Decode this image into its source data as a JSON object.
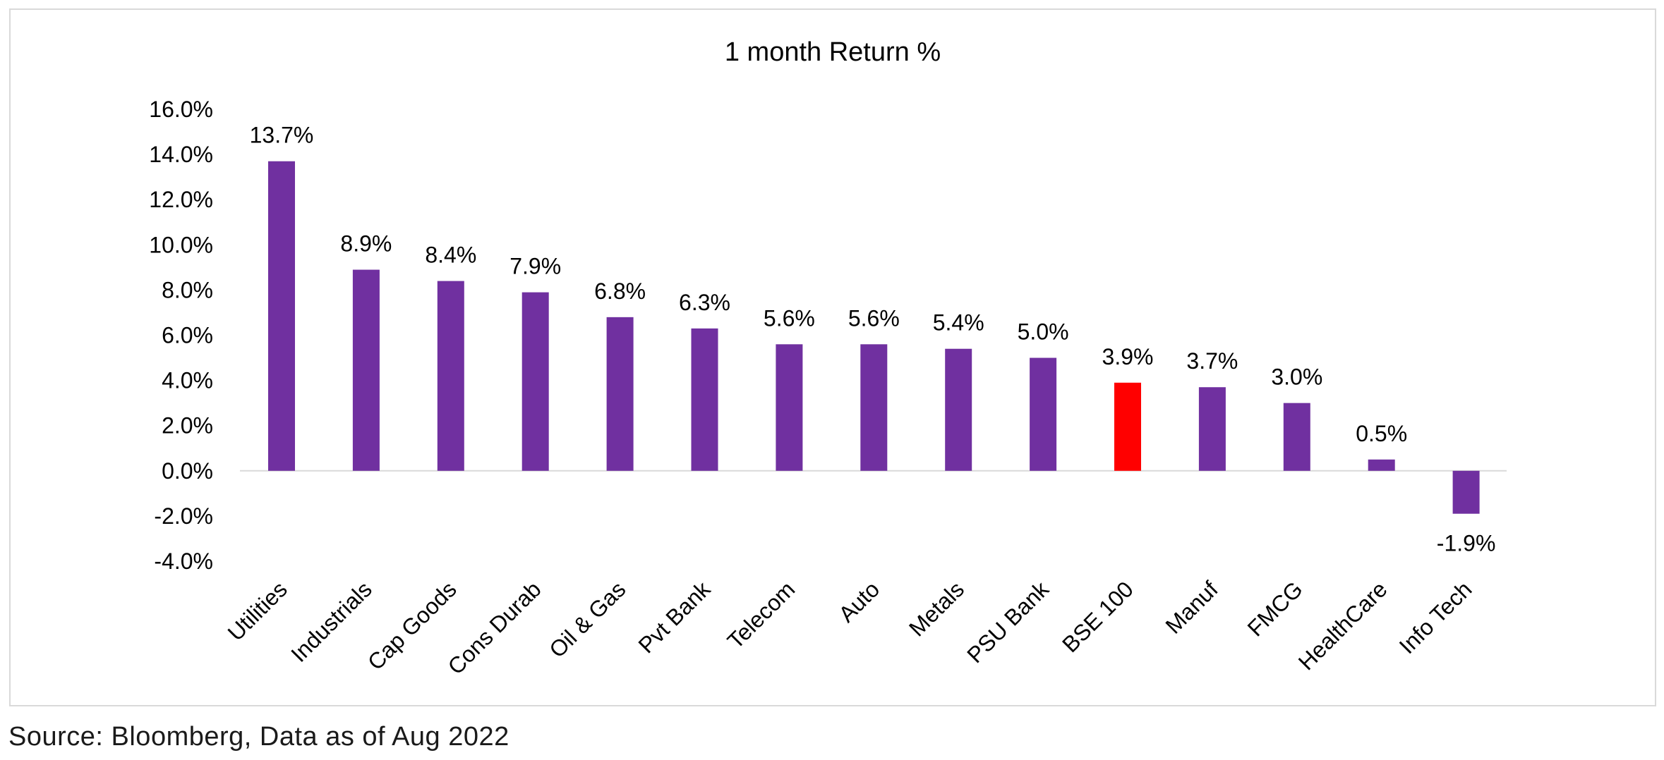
{
  "chart_data": {
    "type": "bar",
    "title": "1 month Return %",
    "categories": [
      "Utilities",
      "Industrials",
      "Cap Goods",
      "Cons Durab",
      "Oil & Gas",
      "Pvt Bank",
      "Telecom",
      "Auto",
      "Metals",
      "PSU Bank",
      "BSE 100",
      "Manuf",
      "FMCG",
      "HealthCare",
      "Info Tech"
    ],
    "values": [
      13.7,
      8.9,
      8.4,
      7.9,
      6.8,
      6.3,
      5.6,
      5.6,
      5.4,
      5.0,
      3.9,
      3.7,
      3.0,
      0.5,
      -1.9
    ],
    "data_labels": [
      "13.7%",
      "8.9%",
      "8.4%",
      "7.9%",
      "6.8%",
      "6.3%",
      "5.6%",
      "5.6%",
      "5.4%",
      "5.0%",
      "3.9%",
      "3.7%",
      "3.0%",
      "0.5%",
      "-1.9%"
    ],
    "ylim": [
      -4,
      16
    ],
    "yticks": [
      16,
      14,
      12,
      10,
      8,
      6,
      4,
      2,
      0,
      -2,
      -4
    ],
    "ytick_labels": [
      "16.0%",
      "14.0%",
      "12.0%",
      "10.0%",
      "8.0%",
      "6.0%",
      "4.0%",
      "2.0%",
      "0.0%",
      "-2.0%",
      "-4.0%"
    ],
    "xlabel": "",
    "ylabel": "",
    "grid": false,
    "legend": "none",
    "bar_color": "#7030a0",
    "highlight_category": "BSE 100",
    "highlight_color": "#ff0000",
    "axis_color": "#d9d9d9"
  },
  "footer": {
    "source": "Source: Bloomberg, Data as of Aug 2022"
  }
}
